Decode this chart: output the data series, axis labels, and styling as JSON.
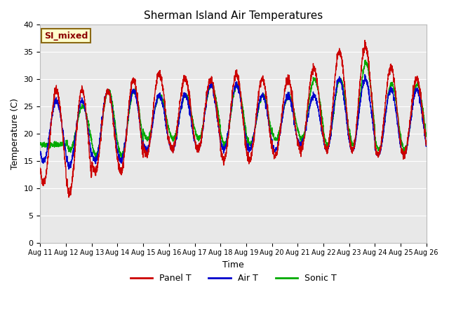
{
  "title": "Sherman Island Air Temperatures",
  "xlabel": "Time",
  "ylabel": "Temperature (C)",
  "ylim": [
    0,
    40
  ],
  "yticks": [
    0,
    5,
    10,
    15,
    20,
    25,
    30,
    35,
    40
  ],
  "xtick_labels": [
    "Aug 11",
    "Aug 12",
    "Aug 13",
    "Aug 14",
    "Aug 15",
    "Aug 16",
    "Aug 17",
    "Aug 18",
    "Aug 19",
    "Aug 20",
    "Aug 21",
    "Aug 22",
    "Aug 23",
    "Aug 24",
    "Aug 25",
    "Aug 26"
  ],
  "legend_labels": [
    "Panel T",
    "Air T",
    "Sonic T"
  ],
  "legend_colors": [
    "#cc0000",
    "#0000cc",
    "#00aa00"
  ],
  "annotation_text": "SI_mixed",
  "annotation_color": "#8b0000",
  "annotation_bg": "#ffffcc",
  "plot_bg": "#e8e8e8",
  "fig_bg": "#ffffff",
  "grid_color": "#ffffff",
  "line_colors": [
    "#cc0000",
    "#0000cc",
    "#00aa00"
  ],
  "line_width": 1.0
}
